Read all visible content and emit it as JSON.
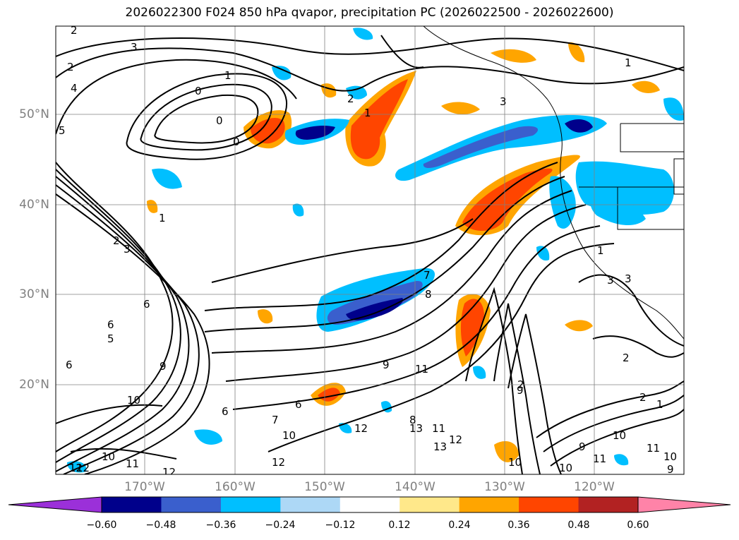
{
  "title": "2026022300 F024 850 hPa qvapor, precipitation PC (2026022500 - 2026022600)",
  "lat_labels": [
    "50°N",
    "40°N",
    "30°N",
    "20°N"
  ],
  "lon_labels": [
    "170°W",
    "160°W",
    "150°W",
    "140°W",
    "130°W",
    "120°W"
  ],
  "colorbar": {
    "ticks": [
      "−0.60",
      "−0.48",
      "−0.36",
      "−0.24",
      "−0.12",
      "0.12",
      "0.24",
      "0.36",
      "0.48",
      "0.60"
    ],
    "colors": [
      "#9b30d9",
      "#00008b",
      "#3a5fcd",
      "#00bfff",
      "#add8f6",
      "#ffffff",
      "#ffe88a",
      "#ffa500",
      "#ff4500",
      "#b22222",
      "#ff83a8"
    ]
  },
  "contour_labels": [
    "2",
    "3",
    "1",
    "2",
    "4",
    "0",
    "0",
    "0",
    "5",
    "2",
    "1",
    "3",
    "1",
    "3",
    "2",
    "1",
    "3",
    "1",
    "6",
    "2",
    "3",
    "9",
    "6",
    "7",
    "6",
    "10",
    "6",
    "8",
    "9",
    "11",
    "12",
    "10",
    "12",
    "11",
    "10",
    "12",
    "13",
    "12",
    "11",
    "8",
    "7",
    "2",
    "9",
    "2",
    "10",
    "1",
    "11",
    "10",
    "10",
    "9",
    "12",
    "12",
    "10",
    "11",
    "13",
    "6",
    "5",
    "9"
  ]
}
